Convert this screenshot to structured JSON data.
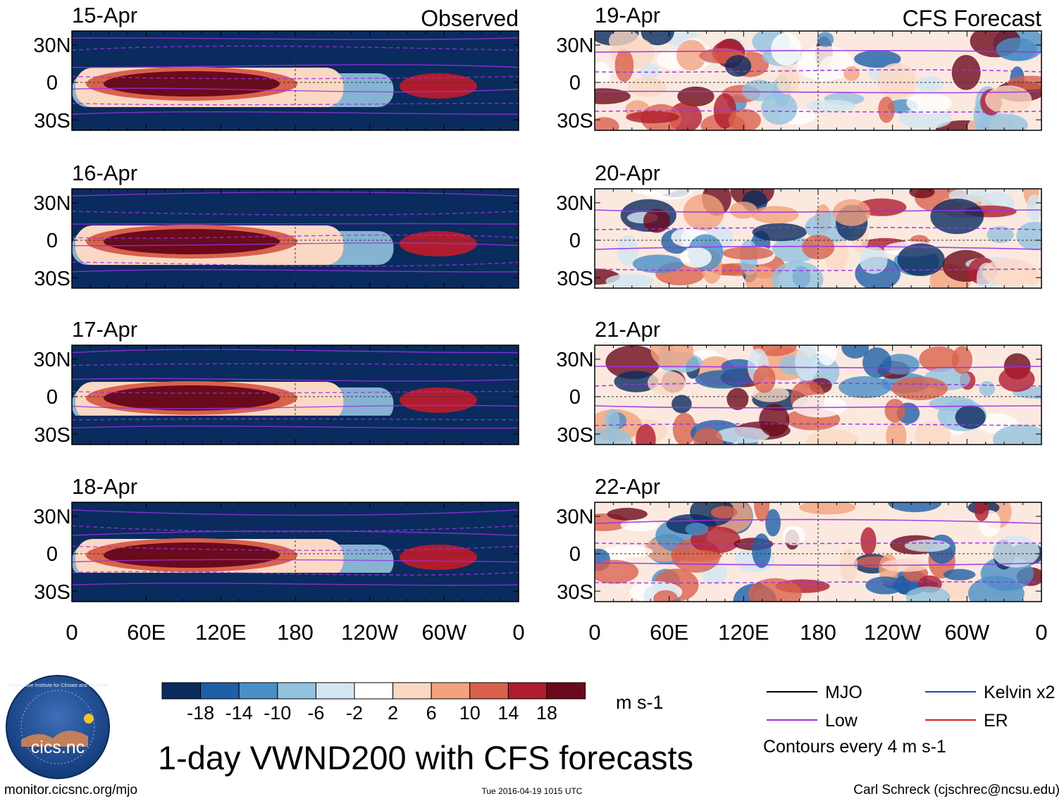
{
  "title": "1-day VWND200 with CFS forecasts",
  "left_header": "Observed",
  "right_header": "CFS Forecast",
  "units": "m s-1",
  "contour_note": "Contours every 4 m s-1",
  "website": "monitor.cicsnc.org/mjo",
  "timestamp": "Tue 2016-04-19 1015 UTC",
  "author": "Carl Schreck (cjschrec@ncsu.edu)",
  "logo": {
    "text": "cics.nc",
    "ring_text": "Cooperative Institute for Climate and Satellites"
  },
  "legend": [
    {
      "name": "MJO",
      "color": "#000000"
    },
    {
      "name": "Kelvin x2",
      "color": "#1f3fd1"
    },
    {
      "name": "Low",
      "color": "#9b30e8"
    },
    {
      "name": "ER",
      "color": "#d62020"
    }
  ],
  "colorbar": {
    "colors": [
      "#0a2b5e",
      "#1f5fa8",
      "#4a8fc6",
      "#93c2de",
      "#d3e6f1",
      "#ffffff",
      "#fbd8c4",
      "#f2a27e",
      "#d9614d",
      "#b01c2e",
      "#6b0a1c"
    ],
    "labels": [
      "-18",
      "-14",
      "-10",
      "-6",
      "-2",
      "2",
      "6",
      "10",
      "14",
      "18"
    ]
  },
  "chart_data": {
    "type": "heatmap",
    "variable": "VWND200",
    "x_ticks": [
      "0",
      "60E",
      "120E",
      "180",
      "120W",
      "60W",
      "0"
    ],
    "y_ticks": [
      "30N",
      "0",
      "30S"
    ],
    "panels": [
      {
        "date": "15-Apr",
        "source": "Observed"
      },
      {
        "date": "16-Apr",
        "source": "Observed"
      },
      {
        "date": "17-Apr",
        "source": "Observed"
      },
      {
        "date": "18-Apr",
        "source": "Observed"
      },
      {
        "date": "19-Apr",
        "source": "CFS Forecast"
      },
      {
        "date": "20-Apr",
        "source": "CFS Forecast"
      },
      {
        "date": "21-Apr",
        "source": "CFS Forecast"
      },
      {
        "date": "22-Apr",
        "source": "CFS Forecast"
      }
    ]
  }
}
